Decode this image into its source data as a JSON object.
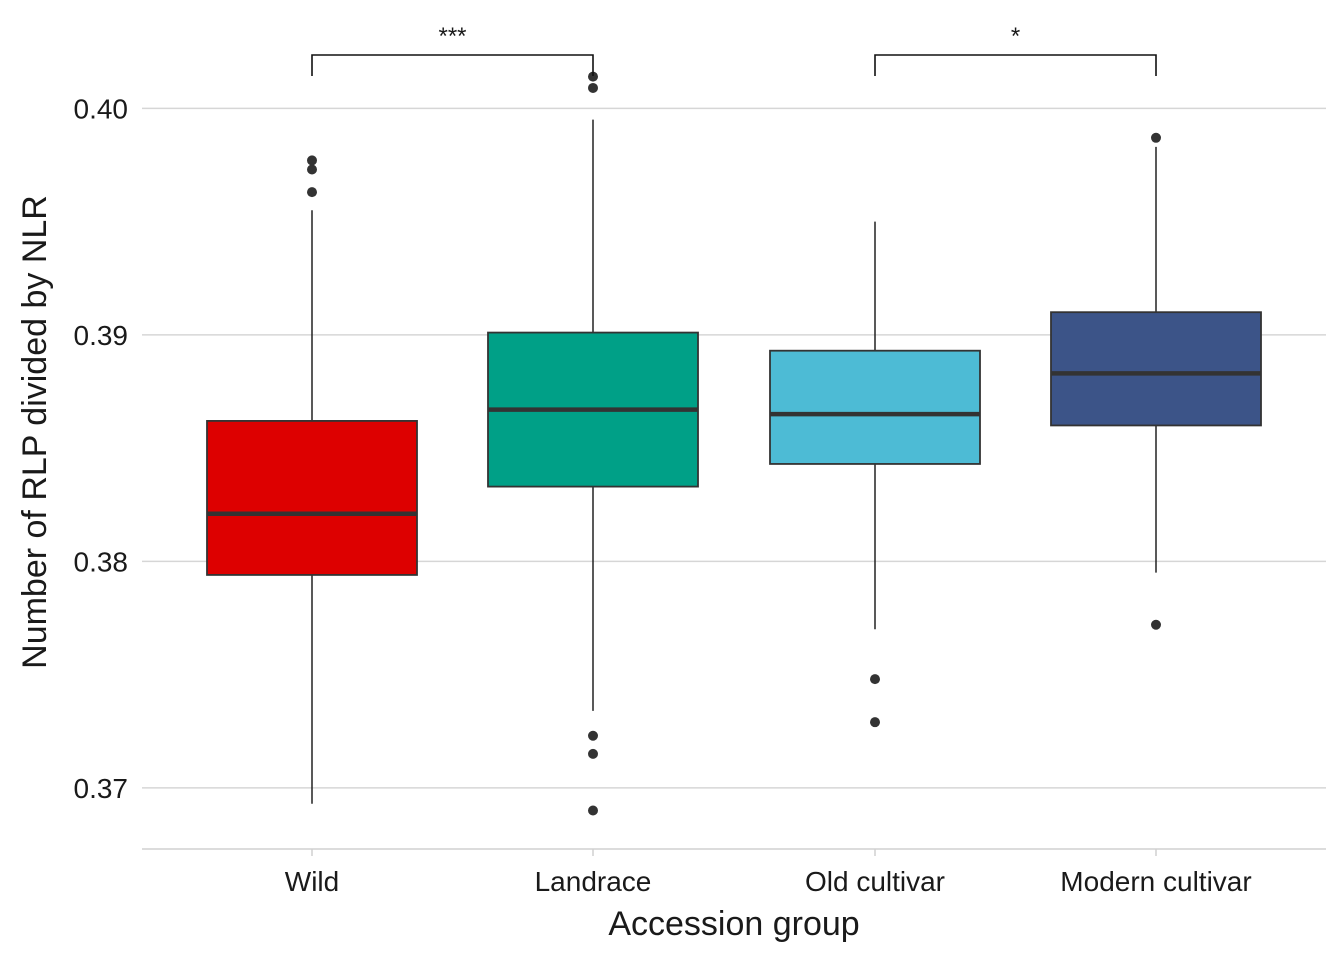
{
  "chart_data": {
    "type": "boxplot",
    "title": "",
    "xlabel": "Accession group",
    "ylabel": "Number of RLP divided by NLR",
    "ylim": [
      0.3673,
      0.4039
    ],
    "yticks": [
      0.37,
      0.38,
      0.39,
      0.4
    ],
    "ytick_labels": [
      "0.37",
      "0.38",
      "0.39",
      "0.40"
    ],
    "grid": "horizontal",
    "legend": "none",
    "categories": [
      "Wild",
      "Landrace",
      "Old cultivar",
      "Modern cultivar"
    ],
    "boxes": [
      {
        "name": "Wild",
        "color": "#DD0000",
        "whisker_low": 0.3693,
        "q1": 0.3794,
        "median": 0.3821,
        "q3": 0.3862,
        "whisker_high": 0.3955,
        "outliers": [
          0.3963,
          0.3973,
          0.3977
        ]
      },
      {
        "name": "Landrace",
        "color": "#00A087",
        "whisker_low": 0.3734,
        "q1": 0.3833,
        "median": 0.3867,
        "q3": 0.3901,
        "whisker_high": 0.3995,
        "outliers": [
          0.369,
          0.3715,
          0.3723,
          0.4009,
          0.4014
        ]
      },
      {
        "name": "Old cultivar",
        "color": "#4DBBD5",
        "whisker_low": 0.377,
        "q1": 0.3843,
        "median": 0.3865,
        "q3": 0.3893,
        "whisker_high": 0.395,
        "outliers": [
          0.3729,
          0.3748
        ]
      },
      {
        "name": "Modern cultivar",
        "color": "#3C5488",
        "whisker_low": 0.3795,
        "q1": 0.386,
        "median": 0.3883,
        "q3": 0.391,
        "whisker_high": 0.3983,
        "outliers": [
          0.3772,
          0.3987
        ]
      }
    ],
    "significance": [
      {
        "from": "Wild",
        "to": "Landrace",
        "label": "***"
      },
      {
        "from": "Old cultivar",
        "to": "Modern cultivar",
        "label": "*"
      }
    ]
  }
}
